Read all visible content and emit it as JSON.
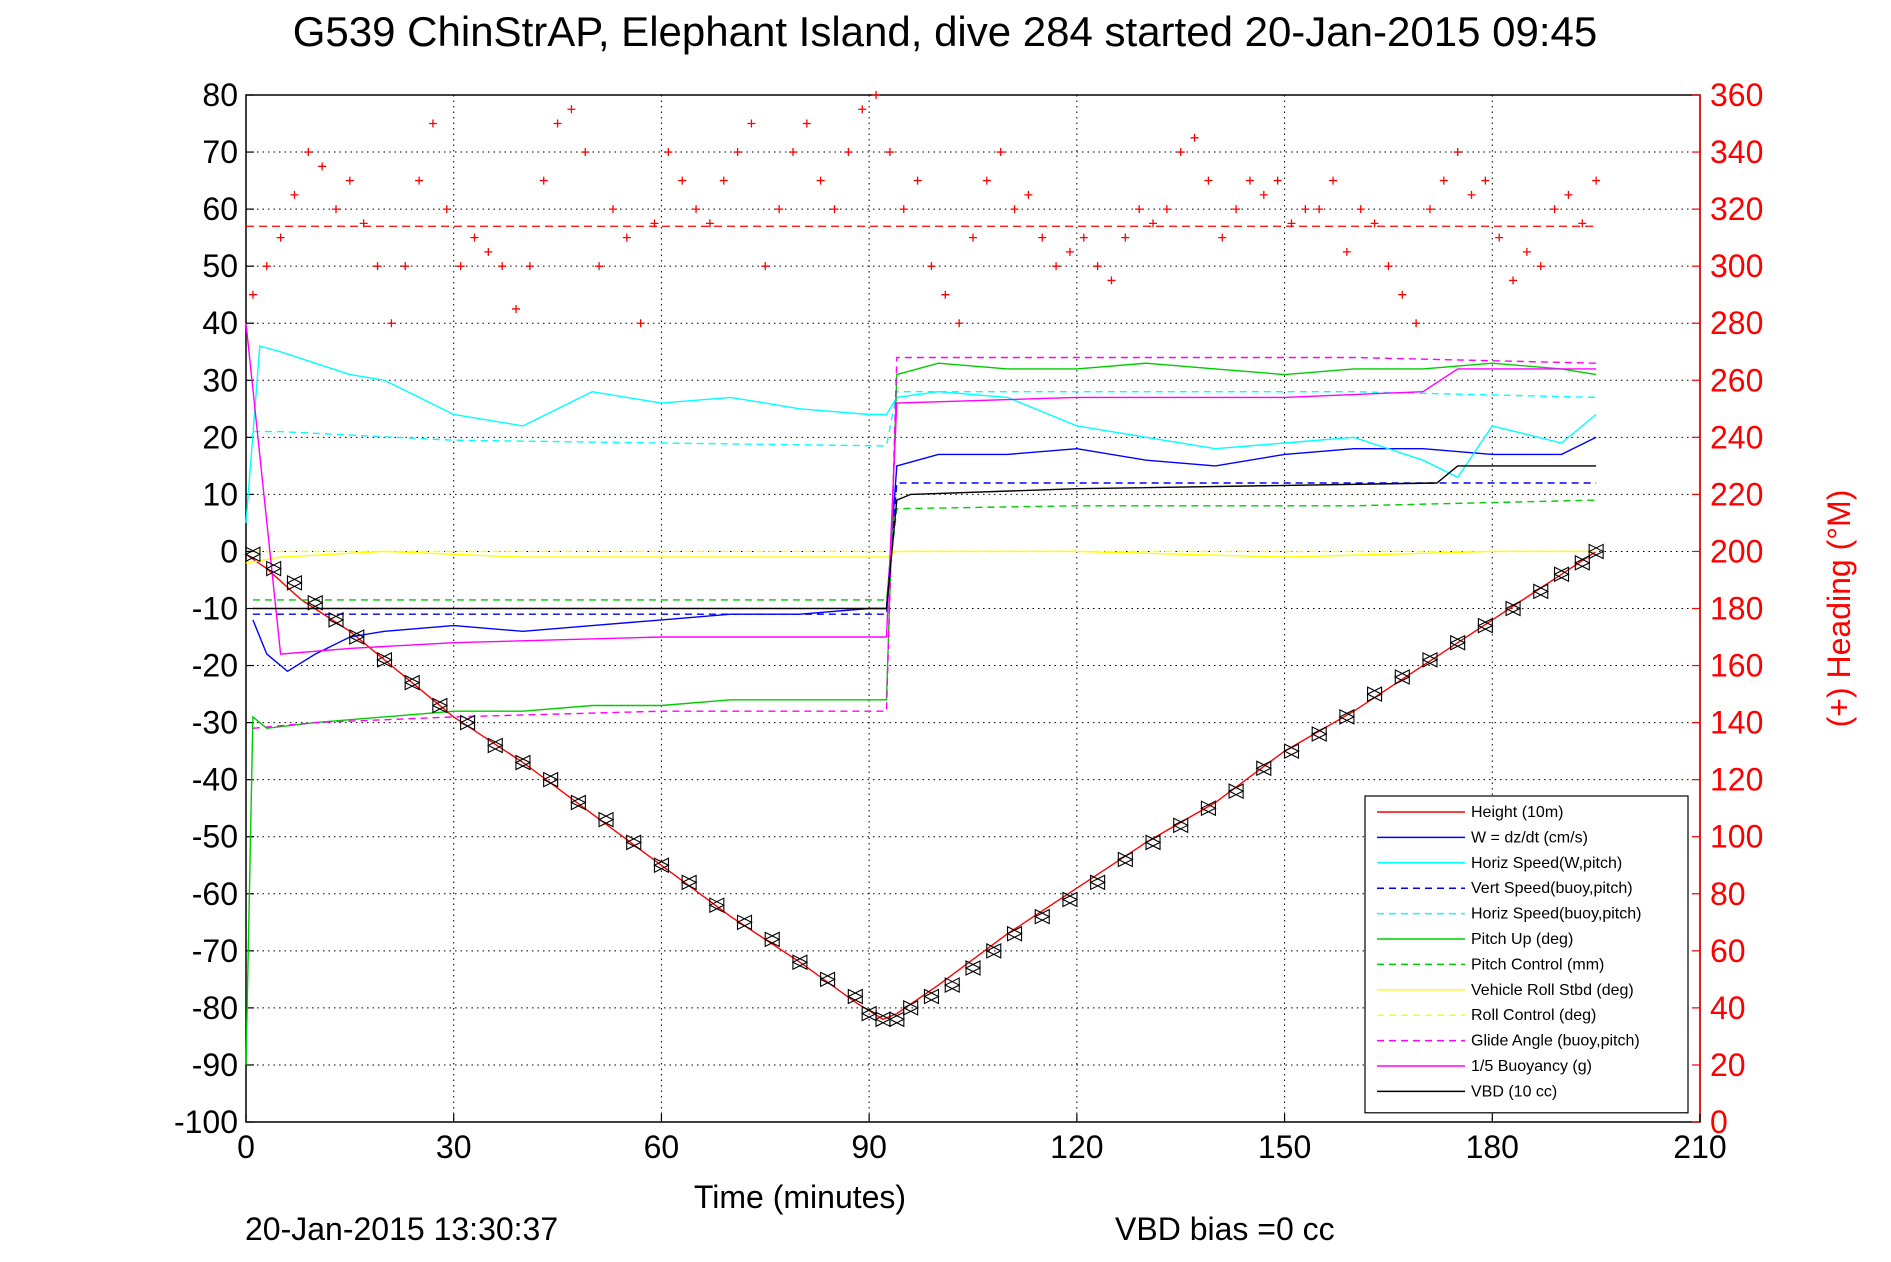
{
  "chart_data": {
    "type": "line",
    "title": "G539 ChinStrAP, Elephant Island, dive 284 started 20-Jan-2015 09:45",
    "xlabel": "Time (minutes)",
    "ylabel": "",
    "y2label": "(+) Heading (°M)",
    "xlim": [
      0,
      210
    ],
    "ylim": [
      -100,
      80
    ],
    "y2lim": [
      0,
      360
    ],
    "x_ticks": [
      "0",
      "30",
      "60",
      "90",
      "120",
      "150",
      "180",
      "210"
    ],
    "y_ticks": [
      "80",
      "70",
      "60",
      "50",
      "40",
      "30",
      "20",
      "10",
      "0",
      "-10",
      "-20",
      "-30",
      "-40",
      "-50",
      "-60",
      "-70",
      "-80",
      "-90",
      "-100"
    ],
    "y2_ticks": [
      "360",
      "340",
      "320",
      "300",
      "280",
      "260",
      "240",
      "220",
      "200",
      "180",
      "160",
      "140",
      "120",
      "100",
      "80",
      "60",
      "40",
      "20",
      "0"
    ],
    "grid": true,
    "legend_position": "bottom-right",
    "footer_left": "20-Jan-2015 13:30:37",
    "footer_right": "VBD bias =0 cc",
    "series": [
      {
        "name": "Height (10m)",
        "color": "#ff0000",
        "style": "solid",
        "x": [
          0,
          3,
          8,
          15,
          22,
          30,
          40,
          50,
          60,
          70,
          80,
          88,
          92,
          94,
          100,
          110,
          120,
          130,
          140,
          150,
          160,
          170,
          180,
          190,
          195
        ],
        "y": [
          -0.5,
          -3,
          -8.5,
          -14,
          -21,
          -29,
          -37,
          -46,
          -55,
          -64,
          -72,
          -79,
          -82,
          -81,
          -76,
          -67,
          -59,
          -51,
          -44,
          -35,
          -28,
          -20,
          -12,
          -4,
          0
        ]
      },
      {
        "name": "W = dz/dt (cm/s)",
        "color": "#0000ff",
        "style": "solid",
        "x": [
          1,
          3,
          6,
          10,
          15,
          20,
          30,
          40,
          50,
          60,
          70,
          80,
          90,
          92.5,
          94,
          100,
          110,
          120,
          130,
          140,
          150,
          160,
          170,
          180,
          190,
          195
        ],
        "y": [
          -12,
          -18,
          -21,
          -18,
          -15,
          -14,
          -13,
          -14,
          -13,
          -12,
          -11,
          -11,
          -10,
          -10,
          15,
          17,
          17,
          18,
          16,
          15,
          17,
          18,
          18,
          17,
          17,
          20
        ]
      },
      {
        "name": "Horiz Speed(W,pitch)",
        "color": "#00ffff",
        "style": "solid",
        "x": [
          0,
          2,
          5,
          10,
          15,
          20,
          25,
          30,
          40,
          50,
          60,
          70,
          80,
          90,
          92.5,
          94,
          100,
          110,
          120,
          130,
          140,
          150,
          160,
          170,
          175,
          180,
          190,
          195
        ],
        "y": [
          5,
          36,
          35,
          33,
          31,
          30,
          27,
          24,
          22,
          28,
          26,
          27,
          25,
          24,
          24,
          27,
          28,
          27,
          22,
          20,
          18,
          19,
          20,
          16,
          13,
          22,
          19,
          24
        ]
      },
      {
        "name": "Vert Speed(buoy,pitch)",
        "color": "#0000ff",
        "style": "dashed",
        "x": [
          1,
          92.5,
          94,
          195
        ],
        "y": [
          -11,
          -11,
          12,
          12
        ]
      },
      {
        "name": "Horiz Speed(buoy,pitch)",
        "color": "#00ffff",
        "style": "dashed",
        "x": [
          1,
          5,
          30,
          60,
          92.5,
          94,
          130,
          160,
          195
        ],
        "y": [
          21,
          21,
          19.5,
          19,
          18.5,
          28,
          28,
          28,
          27
        ]
      },
      {
        "name": "Pitch Up (deg)",
        "color": "#00cc00",
        "style": "solid",
        "x": [
          0,
          1,
          3,
          10,
          20,
          30,
          40,
          50,
          60,
          70,
          80,
          90,
          92.5,
          94,
          100,
          110,
          120,
          130,
          140,
          150,
          160,
          170,
          180,
          190,
          195
        ],
        "y": [
          -90,
          -29,
          -31,
          -30,
          -29,
          -28,
          -28,
          -27,
          -27,
          -26,
          -26,
          -26,
          -26,
          31,
          33,
          32,
          32,
          33,
          32,
          31,
          32,
          32,
          33,
          32,
          31
        ]
      },
      {
        "name": "Pitch Control (mm)",
        "color": "#00cc00",
        "style": "dashed",
        "x": [
          1,
          92.5,
          94,
          120,
          160,
          195
        ],
        "y": [
          -8.5,
          -8.5,
          7.5,
          8,
          8,
          9
        ]
      },
      {
        "name": "Vehicle Roll Stbd (deg)",
        "color": "#ffff00",
        "style": "solid",
        "x": [
          0,
          5,
          20,
          40,
          60,
          80,
          92.5,
          94,
          120,
          150,
          180,
          195
        ],
        "y": [
          -2,
          -1,
          0,
          -1,
          -1,
          -1,
          -1,
          0,
          0,
          -1,
          0,
          0
        ]
      },
      {
        "name": "Roll Control (deg)",
        "color": "#ffff00",
        "style": "dashed",
        "x": [
          1,
          195
        ],
        "y": [
          0,
          0
        ]
      },
      {
        "name": "Glide Angle (buoy,pitch)",
        "color": "#ff00ff",
        "style": "dashed",
        "x": [
          1,
          10,
          30,
          60,
          92.5,
          94,
          120,
          160,
          195
        ],
        "y": [
          -31,
          -30,
          -29,
          -28,
          -28,
          34,
          34,
          34,
          33
        ]
      },
      {
        "name": "1/5 Buoyancy (g)",
        "color": "#ff00ff",
        "style": "solid",
        "x": [
          0,
          5,
          15,
          30,
          60,
          92.5,
          94,
          120,
          150,
          170,
          175,
          195
        ],
        "y": [
          40,
          -18,
          -17,
          -16,
          -15,
          -15,
          26,
          27,
          27,
          28,
          32,
          32
        ]
      },
      {
        "name": "VBD (10 cc)",
        "color": "#000000",
        "style": "solid",
        "x": [
          1,
          92.5,
          94,
          96,
          120,
          172,
          175,
          195
        ],
        "y": [
          -10,
          -10,
          9,
          10,
          11,
          12,
          15,
          15
        ]
      }
    ],
    "heading_series": {
      "name": "Heading",
      "color": "#ff0000",
      "marker": "+",
      "mean_line_deg": 314,
      "x": [
        1,
        3,
        5,
        7,
        9,
        11,
        13,
        15,
        17,
        19,
        21,
        23,
        25,
        27,
        29,
        31,
        33,
        35,
        37,
        39,
        41,
        43,
        45,
        47,
        49,
        51,
        53,
        55,
        57,
        59,
        61,
        63,
        65,
        67,
        69,
        71,
        73,
        75,
        77,
        79,
        81,
        83,
        85,
        87,
        89,
        91,
        93,
        95,
        97,
        99,
        101,
        103,
        105,
        107,
        109,
        111,
        113,
        115,
        117,
        119,
        121,
        123,
        125,
        127,
        129,
        131,
        133,
        135,
        137,
        139,
        141,
        143,
        145,
        147,
        149,
        151,
        153,
        155,
        157,
        159,
        161,
        163,
        165,
        167,
        169,
        171,
        173,
        175,
        177,
        179,
        181,
        183,
        185,
        187,
        189,
        191,
        193,
        195
      ],
      "y": [
        290,
        300,
        310,
        325,
        340,
        335,
        320,
        330,
        315,
        300,
        280,
        300,
        330,
        350,
        320,
        300,
        310,
        305,
        300,
        285,
        300,
        330,
        350,
        355,
        340,
        300,
        320,
        310,
        280,
        315,
        340,
        330,
        320,
        315,
        330,
        340,
        350,
        300,
        320,
        340,
        350,
        330,
        320,
        340,
        355,
        360,
        340,
        320,
        330,
        300,
        290,
        280,
        310,
        330,
        340,
        320,
        325,
        310,
        300,
        305,
        310,
        300,
        295,
        310,
        320,
        315,
        320,
        340,
        345,
        330,
        310,
        320,
        330,
        325,
        330,
        315,
        320,
        320,
        330,
        305,
        320,
        315,
        300,
        290,
        280,
        320,
        330,
        340,
        325,
        330,
        310,
        295,
        305,
        300,
        320,
        325,
        315,
        330
      ]
    },
    "markers": {
      "name": "Depth sample markers",
      "x": [
        1,
        4,
        7,
        10,
        13,
        16,
        20,
        24,
        28,
        32,
        36,
        40,
        44,
        48,
        52,
        56,
        60,
        64,
        68,
        72,
        76,
        80,
        84,
        88,
        90,
        92,
        94,
        96,
        99,
        102,
        105,
        108,
        111,
        115,
        119,
        123,
        127,
        131,
        135,
        139,
        143,
        147,
        151,
        155,
        159,
        163,
        167,
        171,
        175,
        179,
        183,
        187,
        190,
        193,
        195
      ],
      "y": [
        -0.5,
        -3,
        -5.5,
        -9,
        -12,
        -15,
        -19,
        -23,
        -27,
        -30,
        -34,
        -37,
        -40,
        -44,
        -47,
        -51,
        -55,
        -58,
        -62,
        -65,
        -68,
        -72,
        -75,
        -78,
        -81,
        -82,
        -82,
        -80,
        -78,
        -76,
        -73,
        -70,
        -67,
        -64,
        -61,
        -58,
        -54,
        -51,
        -48,
        -45,
        -42,
        -38,
        -35,
        -32,
        -29,
        -25,
        -22,
        -19,
        -16,
        -13,
        -10,
        -7,
        -4,
        -2,
        0
      ]
    }
  }
}
